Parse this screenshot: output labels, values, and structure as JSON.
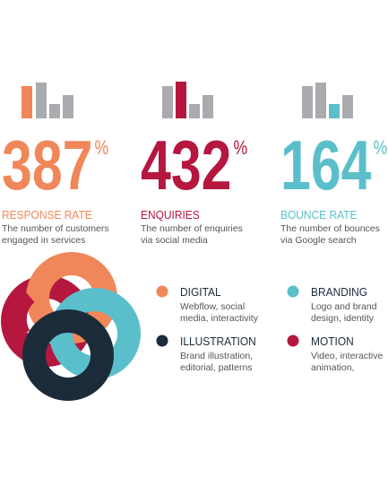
{
  "stats": [
    {
      "value": "387",
      "unit": "%",
      "title": "RESPONSE RATE",
      "description": [
        "The number of customers",
        "engaged in services"
      ],
      "color": "#f0875a"
    },
    {
      "value": "432",
      "unit": "%",
      "title": "ENQUIRIES",
      "description": [
        "The number of enquiries",
        "via social media"
      ],
      "color": "#b5173f"
    },
    {
      "value": "164",
      "unit": "%",
      "title": "BOUNCE RATE",
      "description": [
        "The number of bounces",
        "via Google search"
      ],
      "color": "#5bbfcb"
    }
  ],
  "legend": [
    {
      "title": "DIGITAL",
      "description": [
        "Webflow, social",
        "media, interactivity"
      ],
      "color": "#f0875a"
    },
    {
      "title": "BRANDING",
      "description": [
        "Logo and brand",
        "design, identity"
      ],
      "color": "#5bbfcb"
    },
    {
      "title": "ILLUSTRATION",
      "description": [
        "Brand illustration,",
        "editorial, patterns"
      ],
      "color": "#1c2b3a"
    },
    {
      "title": "MOTION",
      "description": [
        "Video, interactive",
        "animation,"
      ],
      "color": "#b5173f"
    }
  ]
}
